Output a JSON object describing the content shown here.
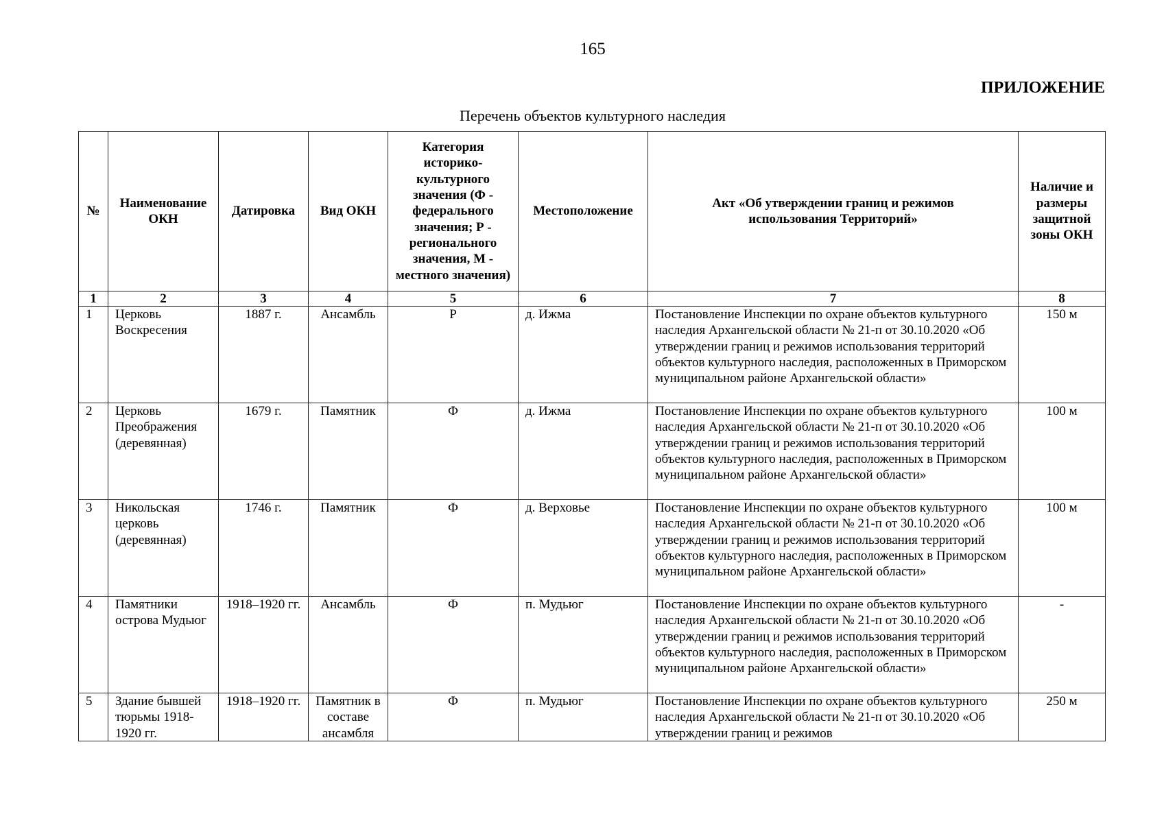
{
  "page_number": "165",
  "appendix_label": "ПРИЛОЖЕНИЕ",
  "table_title": "Перечень объектов культурного наследия",
  "columns": [
    {
      "header": "№",
      "number": "1"
    },
    {
      "header": "Наименование ОКН",
      "number": "2"
    },
    {
      "header": "Датировка",
      "number": "3"
    },
    {
      "header": "Вид ОКН",
      "number": "4"
    },
    {
      "header": "Категория историко-культурного значения (Ф - федерального значения; Р - регионального значения, М - местного значения)",
      "number": "5"
    },
    {
      "header": "Местоположение",
      "number": "6"
    },
    {
      "header": "Акт «Об утверждении границ и режимов использования Территорий»",
      "number": "7"
    },
    {
      "header": "Наличие и размеры защитной зоны ОКН",
      "number": "8"
    }
  ],
  "rows": [
    {
      "no": "1",
      "name": "Церковь Воскресения",
      "date": "1887 г.",
      "type": "Ансамбль",
      "category": "Р",
      "location": "д. Ижма",
      "act": "Постановление Инспекции по охране объектов культурного наследия Архангельской области № 21-п от 30.10.2020 «Об утверждении границ и режимов использования территорий объектов культурного наследия, расположенных в Приморском муниципальном районе Архангельской области»",
      "zone": "150 м"
    },
    {
      "no": "2",
      "name": "Церковь Преображения (деревянная)",
      "date": "1679 г.",
      "type": "Памятник",
      "category": "Ф",
      "location": "д. Ижма",
      "act": "Постановление Инспекции по охране объектов культурного наследия Архангельской области № 21-п от 30.10.2020 «Об утверждении границ и режимов использования территорий объектов культурного наследия, расположенных в Приморском муниципальном районе Архангельской области»",
      "zone": "100 м"
    },
    {
      "no": "3",
      "name": "Никольская церковь (деревянная)",
      "date": "1746 г.",
      "type": "Памятник",
      "category": "Ф",
      "location": "д. Верховье",
      "act": "Постановление Инспекции по охране объектов культурного наследия Архангельской области № 21-п от 30.10.2020 «Об утверждении границ и режимов использования территорий объектов культурного наследия, расположенных в Приморском муниципальном районе Архангельской области»",
      "zone": "100 м"
    },
    {
      "no": "4",
      "name": "Памятники острова Мудьюг",
      "date": "1918–1920 гг.",
      "type": "Ансамбль",
      "category": "Ф",
      "location": "п. Мудьюг",
      "act": "Постановление Инспекции по охране объектов культурного наследия Архангельской области № 21-п от 30.10.2020 «Об утверждении границ и режимов использования территорий объектов культурного наследия, расположенных в Приморском муниципальном районе Архангельской области»",
      "zone": "-"
    },
    {
      "no": "5",
      "name": "Здание бывшей тюрьмы 1918-1920 гг.",
      "date": "1918–1920 гг.",
      "type": "Памятник в составе ансамбля",
      "category": "Ф",
      "location": "п. Мудьюг",
      "act": "Постановление Инспекции по охране объектов культурного наследия Архангельской области № 21-п от 30.10.2020 «Об утверждении границ и режимов",
      "zone": "250 м"
    }
  ]
}
